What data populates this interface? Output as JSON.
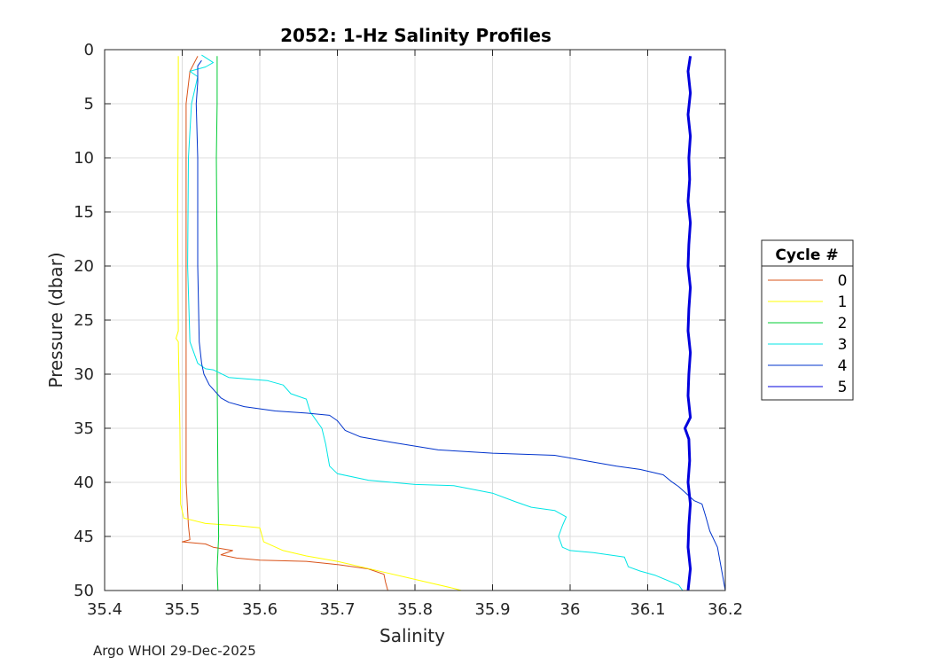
{
  "chart_data": {
    "type": "line",
    "title": "2052: 1-Hz Salinity Profiles",
    "xlabel": "Salinity",
    "ylabel": "Pressure (dbar)",
    "xlim": [
      35.4,
      36.2
    ],
    "ylim": [
      0,
      50
    ],
    "y_reversed": true,
    "grid": true,
    "x_ticks": [
      35.4,
      35.5,
      35.6,
      35.7,
      35.8,
      35.9,
      36.0,
      36.1,
      36.2
    ],
    "x_tick_labels": [
      "35.4",
      "35.5",
      "35.6",
      "35.7",
      "35.8",
      "35.9",
      "36",
      "36.1",
      "36.2"
    ],
    "y_ticks": [
      0,
      5,
      10,
      15,
      20,
      25,
      30,
      35,
      40,
      45,
      50
    ],
    "y_tick_labels": [
      "0",
      "5",
      "10",
      "15",
      "20",
      "25",
      "30",
      "35",
      "40",
      "45",
      "50"
    ],
    "legend": {
      "title": "Cycle #",
      "placement": "right",
      "entries": [
        "0",
        "1",
        "2",
        "3",
        "4",
        "5"
      ]
    },
    "series": [
      {
        "name": "0",
        "color": "#d95319",
        "points": [
          [
            35.52,
            0.6
          ],
          [
            35.51,
            2
          ],
          [
            35.505,
            5
          ],
          [
            35.505,
            10
          ],
          [
            35.505,
            20
          ],
          [
            35.505,
            30
          ],
          [
            35.505,
            40
          ],
          [
            35.508,
            44
          ],
          [
            35.51,
            45.3
          ],
          [
            35.5,
            45.5
          ],
          [
            35.53,
            45.7
          ],
          [
            35.54,
            46
          ],
          [
            35.565,
            46.3
          ],
          [
            35.55,
            46.7
          ],
          [
            35.57,
            47
          ],
          [
            35.6,
            47.2
          ],
          [
            35.66,
            47.3
          ],
          [
            35.7,
            47.6
          ],
          [
            35.74,
            48
          ],
          [
            35.76,
            48.5
          ],
          [
            35.762,
            49.2
          ],
          [
            35.765,
            50
          ]
        ]
      },
      {
        "name": "1",
        "color": "#ffff00",
        "points": [
          [
            35.495,
            0.6
          ],
          [
            35.495,
            5
          ],
          [
            35.494,
            15
          ],
          [
            35.495,
            26
          ],
          [
            35.492,
            26.7
          ],
          [
            35.495,
            27
          ],
          [
            35.497,
            35
          ],
          [
            35.498,
            42
          ],
          [
            35.502,
            43.3
          ],
          [
            35.53,
            43.8
          ],
          [
            35.57,
            44
          ],
          [
            35.6,
            44.2
          ],
          [
            35.605,
            45.5
          ],
          [
            35.63,
            46.3
          ],
          [
            35.66,
            46.8
          ],
          [
            35.7,
            47.3
          ],
          [
            35.73,
            47.8
          ],
          [
            35.76,
            48.3
          ],
          [
            35.79,
            48.8
          ],
          [
            35.82,
            49.3
          ],
          [
            35.85,
            49.8
          ],
          [
            35.86,
            50
          ]
        ]
      },
      {
        "name": "2",
        "color": "#00cc33",
        "points": [
          [
            35.545,
            0.6
          ],
          [
            35.545,
            5
          ],
          [
            35.544,
            10
          ],
          [
            35.545,
            20
          ],
          [
            35.545,
            30
          ],
          [
            35.546,
            40
          ],
          [
            35.547,
            45
          ],
          [
            35.545,
            48
          ],
          [
            35.546,
            50
          ]
        ]
      },
      {
        "name": "3",
        "color": "#00e5e5",
        "points": [
          [
            35.525,
            0.5
          ],
          [
            35.54,
            1.2
          ],
          [
            35.53,
            1.6
          ],
          [
            35.51,
            2
          ],
          [
            35.52,
            2.5
          ],
          [
            35.512,
            5
          ],
          [
            35.508,
            10
          ],
          [
            35.507,
            20
          ],
          [
            35.51,
            27
          ],
          [
            35.52,
            29
          ],
          [
            35.53,
            29.5
          ],
          [
            35.54,
            29.6
          ],
          [
            35.56,
            30.3
          ],
          [
            35.61,
            30.6
          ],
          [
            35.63,
            31
          ],
          [
            35.64,
            31.8
          ],
          [
            35.66,
            32.3
          ],
          [
            35.665,
            33.5
          ],
          [
            35.68,
            35
          ],
          [
            35.685,
            36.5
          ],
          [
            35.69,
            38.5
          ],
          [
            35.7,
            39.2
          ],
          [
            35.74,
            39.8
          ],
          [
            35.8,
            40.2
          ],
          [
            35.85,
            40.3
          ],
          [
            35.9,
            41
          ],
          [
            35.93,
            41.8
          ],
          [
            35.95,
            42.3
          ],
          [
            35.98,
            42.6
          ],
          [
            35.995,
            43.2
          ],
          [
            35.99,
            44
          ],
          [
            35.985,
            45
          ],
          [
            35.99,
            46
          ],
          [
            36.0,
            46.3
          ],
          [
            36.03,
            46.5
          ],
          [
            36.07,
            46.9
          ],
          [
            36.075,
            47.8
          ],
          [
            36.09,
            48.2
          ],
          [
            36.11,
            48.6
          ],
          [
            36.14,
            49.5
          ],
          [
            36.145,
            50
          ]
        ]
      },
      {
        "name": "4",
        "color": "#0033cc",
        "points": [
          [
            35.525,
            1
          ],
          [
            35.52,
            1.5
          ],
          [
            35.52,
            3
          ],
          [
            35.518,
            5
          ],
          [
            35.52,
            10
          ],
          [
            35.52,
            20
          ],
          [
            35.522,
            27
          ],
          [
            35.525,
            29
          ],
          [
            35.528,
            30
          ],
          [
            35.535,
            31
          ],
          [
            35.55,
            32.2
          ],
          [
            35.56,
            32.6
          ],
          [
            35.58,
            33
          ],
          [
            35.62,
            33.4
          ],
          [
            35.66,
            33.6
          ],
          [
            35.69,
            33.8
          ],
          [
            35.7,
            34.3
          ],
          [
            35.71,
            35.2
          ],
          [
            35.73,
            35.8
          ],
          [
            35.77,
            36.3
          ],
          [
            35.83,
            37
          ],
          [
            35.9,
            37.3
          ],
          [
            35.98,
            37.5
          ],
          [
            36.02,
            38
          ],
          [
            36.06,
            38.5
          ],
          [
            36.09,
            38.8
          ],
          [
            36.12,
            39.3
          ],
          [
            36.13,
            39.9
          ],
          [
            36.14,
            40.4
          ],
          [
            36.16,
            41.7
          ],
          [
            36.17,
            42
          ],
          [
            36.175,
            43.2
          ],
          [
            36.18,
            44.5
          ],
          [
            36.19,
            46
          ],
          [
            36.195,
            48
          ],
          [
            36.2,
            50
          ]
        ]
      },
      {
        "name": "5",
        "color": "#0000dd",
        "points": [
          [
            36.155,
            0.6
          ],
          [
            36.152,
            2
          ],
          [
            36.155,
            4
          ],
          [
            36.152,
            6
          ],
          [
            36.155,
            8
          ],
          [
            36.153,
            10
          ],
          [
            36.154,
            12
          ],
          [
            36.152,
            14
          ],
          [
            36.155,
            16
          ],
          [
            36.153,
            18
          ],
          [
            36.152,
            20
          ],
          [
            36.155,
            22
          ],
          [
            36.153,
            24
          ],
          [
            36.152,
            26
          ],
          [
            36.155,
            28
          ],
          [
            36.153,
            30
          ],
          [
            36.152,
            32
          ],
          [
            36.155,
            34
          ],
          [
            36.148,
            35
          ],
          [
            36.153,
            36
          ],
          [
            36.154,
            38
          ],
          [
            36.152,
            40
          ],
          [
            36.155,
            42
          ],
          [
            36.153,
            44
          ],
          [
            36.152,
            46
          ],
          [
            36.155,
            48
          ],
          [
            36.152,
            50
          ]
        ]
      }
    ]
  },
  "footer": "Argo WHOI 29-Dec-2025"
}
